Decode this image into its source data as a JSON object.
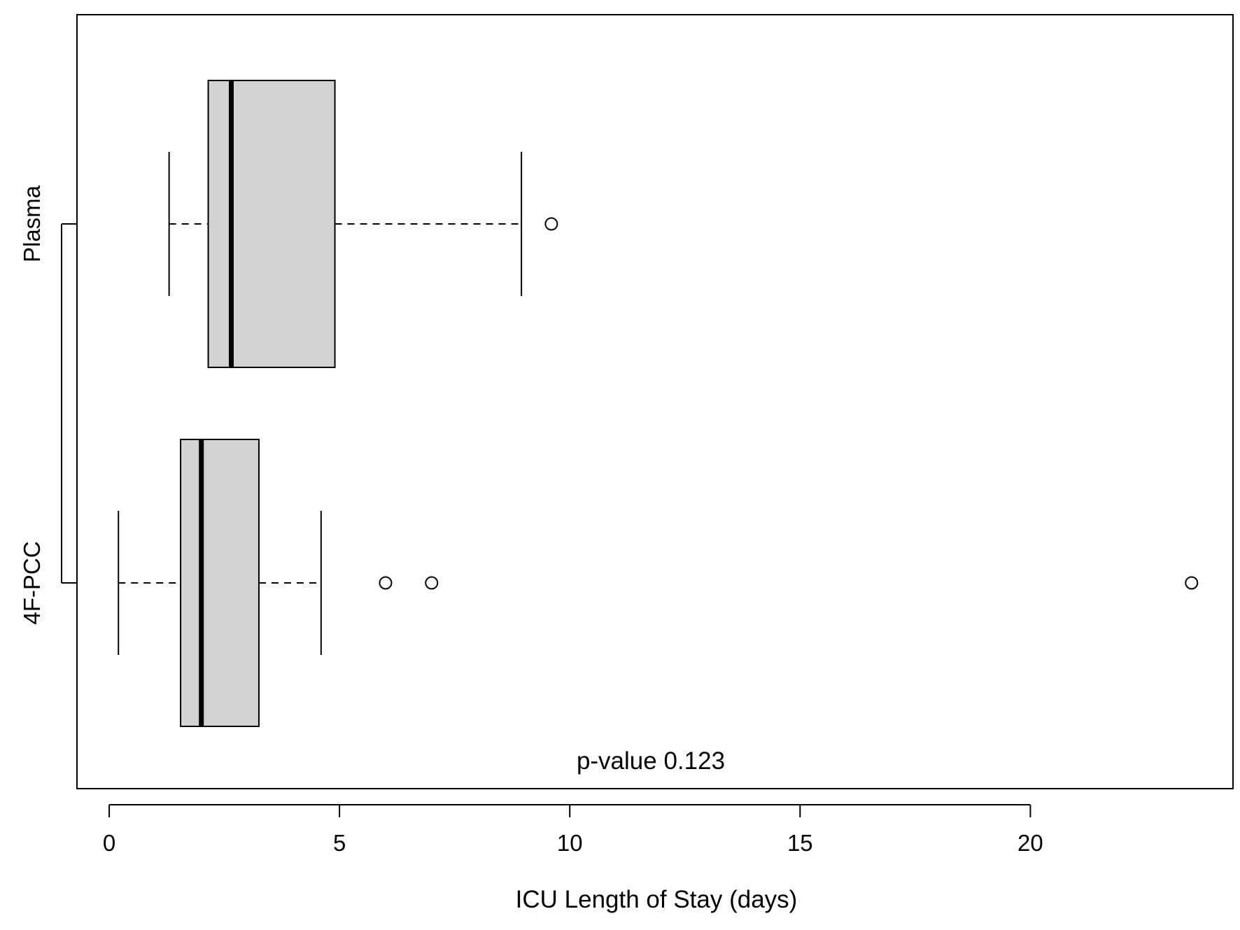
{
  "chart_data": {
    "type": "boxplot",
    "orientation": "horizontal",
    "xlabel": "ICU Length of Stay (days)",
    "ylabel": "",
    "xlim": [
      -0.7,
      24.4
    ],
    "xticks": [
      0,
      5,
      10,
      15,
      20
    ],
    "grid": false,
    "categories": [
      "Plasma",
      "4F-PCC"
    ],
    "series": [
      {
        "name": "Plasma",
        "whisker_low": 1.3,
        "q1": 2.15,
        "median": 2.65,
        "q3": 4.9,
        "whisker_high": 8.95,
        "outliers": [
          9.6
        ]
      },
      {
        "name": "4F-PCC",
        "whisker_low": 0.2,
        "q1": 1.55,
        "median": 2.0,
        "q3": 3.25,
        "whisker_high": 4.6,
        "outliers": [
          6.0,
          7.0,
          23.5
        ]
      }
    ],
    "box_fill": "#d3d3d3",
    "annotation": "p-value 0.123"
  }
}
